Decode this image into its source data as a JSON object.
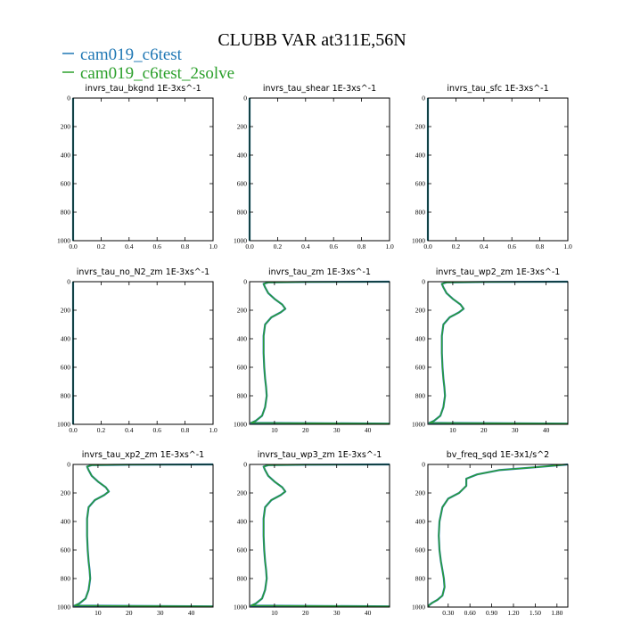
{
  "figure": {
    "title": "CLUBB VAR at311E,56N",
    "legend": [
      {
        "label": "cam019_c6test",
        "color": "#1f77b4"
      },
      {
        "label": "cam019_c6test_2solve",
        "color": "#2ca02c"
      }
    ]
  },
  "chart_data": [
    {
      "type": "line",
      "title": "invrs_tau_bkgnd   1E-3xs^-1",
      "xlim": [
        0,
        1.0
      ],
      "ylim": [
        1000,
        0
      ],
      "y_inverted": true,
      "xticks": [
        0.0,
        0.2,
        0.4,
        0.6,
        0.8,
        1.0
      ],
      "xtick_labels": [
        "0.0",
        "0.2",
        "0.4",
        "0.6",
        "0.8",
        "1.0"
      ],
      "yticks": [
        0,
        200,
        400,
        600,
        800,
        1000
      ],
      "series": [
        {
          "color": "#1f77b4",
          "x": [
            0,
            0
          ],
          "y": [
            0,
            1000
          ]
        },
        {
          "color": "#2ca02c",
          "x": [
            0,
            0
          ],
          "y": [
            0,
            1000
          ]
        }
      ]
    },
    {
      "type": "line",
      "title": "invrs_tau_shear   1E-3xs^-1",
      "xlim": [
        0,
        1.0
      ],
      "ylim": [
        1000,
        0
      ],
      "y_inverted": true,
      "xticks": [
        0.0,
        0.2,
        0.4,
        0.6,
        0.8,
        1.0
      ],
      "xtick_labels": [
        "0.0",
        "0.2",
        "0.4",
        "0.6",
        "0.8",
        "1.0"
      ],
      "yticks": [
        0,
        200,
        400,
        600,
        800,
        1000
      ],
      "series": [
        {
          "color": "#1f77b4",
          "x": [
            0,
            0
          ],
          "y": [
            0,
            1000
          ]
        },
        {
          "color": "#2ca02c",
          "x": [
            0,
            0
          ],
          "y": [
            0,
            1000
          ]
        }
      ]
    },
    {
      "type": "line",
      "title": "invrs_tau_sfc   1E-3xs^-1",
      "xlim": [
        0,
        1.0
      ],
      "ylim": [
        1000,
        0
      ],
      "y_inverted": true,
      "xticks": [
        0.0,
        0.2,
        0.4,
        0.6,
        0.8,
        1.0
      ],
      "xtick_labels": [
        "0.0",
        "0.2",
        "0.4",
        "0.6",
        "0.8",
        "1.0"
      ],
      "yticks": [
        0,
        200,
        400,
        600,
        800,
        1000
      ],
      "series": [
        {
          "color": "#1f77b4",
          "x": [
            0,
            0
          ],
          "y": [
            0,
            1000
          ]
        },
        {
          "color": "#2ca02c",
          "x": [
            0,
            0
          ],
          "y": [
            0,
            1000
          ]
        }
      ]
    },
    {
      "type": "line",
      "title": "invrs_tau_no_N2_zm   1E-3xs^-1",
      "xlim": [
        0,
        1.0
      ],
      "ylim": [
        1000,
        0
      ],
      "y_inverted": true,
      "xticks": [
        0.0,
        0.2,
        0.4,
        0.6,
        0.8,
        1.0
      ],
      "xtick_labels": [
        "0.0",
        "0.2",
        "0.4",
        "0.6",
        "0.8",
        "1.0"
      ],
      "yticks": [
        0,
        200,
        400,
        600,
        800,
        1000
      ],
      "series": [
        {
          "color": "#1f77b4",
          "x": [
            0,
            0
          ],
          "y": [
            0,
            1000
          ]
        },
        {
          "color": "#2ca02c",
          "x": [
            0,
            0
          ],
          "y": [
            0,
            1000
          ]
        }
      ]
    },
    {
      "type": "line",
      "title": "invrs_tau_zm   1E-3xs^-1",
      "xlim": [
        2,
        47
      ],
      "ylim": [
        1000,
        0
      ],
      "y_inverted": true,
      "xticks": [
        10,
        20,
        30,
        40
      ],
      "xtick_labels": [
        "10",
        "20",
        "30",
        "40"
      ],
      "yticks": [
        0,
        200,
        400,
        600,
        800,
        1000
      ],
      "series": [
        {
          "color": "#1f77b4",
          "x": [
            47,
            20,
            8,
            6.5,
            7,
            8,
            10,
            12.5,
            13.5,
            12,
            9,
            7,
            6.5,
            6.5,
            6.7,
            7,
            7.3,
            7.5,
            7,
            6,
            4,
            3,
            2.5,
            47
          ],
          "y": [
            0,
            2,
            5,
            15,
            40,
            80,
            120,
            160,
            190,
            215,
            250,
            300,
            380,
            500,
            600,
            680,
            740,
            800,
            880,
            940,
            975,
            985,
            990,
            995
          ]
        },
        {
          "color": "#2ca02c",
          "x": [
            47,
            20,
            8,
            6.5,
            7,
            8,
            10,
            12.5,
            13.5,
            12,
            9,
            7,
            6.5,
            6.5,
            6.7,
            7,
            7.3,
            7.5,
            7,
            6,
            4,
            3,
            2.5,
            47
          ],
          "y": [
            0,
            2,
            5,
            15,
            40,
            80,
            120,
            160,
            190,
            215,
            250,
            300,
            380,
            500,
            600,
            680,
            740,
            800,
            880,
            940,
            975,
            985,
            990,
            995
          ]
        }
      ]
    },
    {
      "type": "line",
      "title": "invrs_tau_wp2_zm   1E-3xs^-1",
      "xlim": [
        2,
        47
      ],
      "ylim": [
        1000,
        0
      ],
      "y_inverted": true,
      "xticks": [
        10,
        20,
        30,
        40
      ],
      "xtick_labels": [
        "10",
        "20",
        "30",
        "40"
      ],
      "yticks": [
        0,
        200,
        400,
        600,
        800,
        1000
      ],
      "series": [
        {
          "color": "#1f77b4",
          "x": [
            47,
            20,
            8,
            6.5,
            7,
            8,
            10,
            12.5,
            13.5,
            12,
            9,
            7,
            6.5,
            6.5,
            6.7,
            7,
            7.3,
            7.5,
            7,
            6,
            4,
            3,
            2.5,
            47
          ],
          "y": [
            0,
            2,
            5,
            15,
            40,
            80,
            120,
            160,
            190,
            215,
            250,
            300,
            380,
            500,
            600,
            680,
            740,
            800,
            880,
            940,
            975,
            985,
            990,
            995
          ]
        },
        {
          "color": "#2ca02c",
          "x": [
            47,
            20,
            8,
            6.5,
            7,
            8,
            10,
            12.5,
            13.5,
            12,
            9,
            7,
            6.5,
            6.5,
            6.7,
            7,
            7.3,
            7.5,
            7,
            6,
            4,
            3,
            2.5,
            47
          ],
          "y": [
            0,
            2,
            5,
            15,
            40,
            80,
            120,
            160,
            190,
            215,
            250,
            300,
            380,
            500,
            600,
            680,
            740,
            800,
            880,
            940,
            975,
            985,
            990,
            995
          ]
        }
      ]
    },
    {
      "type": "line",
      "title": "invrs_tau_xp2_zm   1E-3xs^-1",
      "xlim": [
        2,
        47
      ],
      "ylim": [
        1000,
        0
      ],
      "y_inverted": true,
      "xticks": [
        10,
        20,
        30,
        40
      ],
      "xtick_labels": [
        "10",
        "20",
        "30",
        "40"
      ],
      "yticks": [
        0,
        200,
        400,
        600,
        800,
        1000
      ],
      "series": [
        {
          "color": "#1f77b4",
          "x": [
            47,
            20,
            8,
            6.5,
            7,
            8,
            10,
            12.5,
            13.5,
            12,
            9,
            7,
            6.5,
            6.5,
            6.7,
            7,
            7.3,
            7.5,
            7,
            6,
            4,
            3,
            2.5,
            47
          ],
          "y": [
            0,
            2,
            5,
            15,
            40,
            80,
            120,
            160,
            190,
            215,
            250,
            300,
            380,
            500,
            600,
            680,
            740,
            800,
            880,
            940,
            975,
            985,
            990,
            995
          ]
        },
        {
          "color": "#2ca02c",
          "x": [
            47,
            20,
            8,
            6.5,
            7,
            8,
            10,
            12.5,
            13.5,
            12,
            9,
            7,
            6.5,
            6.5,
            6.7,
            7,
            7.3,
            7.5,
            7,
            6,
            4,
            3,
            2.5,
            47
          ],
          "y": [
            0,
            2,
            5,
            15,
            40,
            80,
            120,
            160,
            190,
            215,
            250,
            300,
            380,
            500,
            600,
            680,
            740,
            800,
            880,
            940,
            975,
            985,
            990,
            995
          ]
        }
      ]
    },
    {
      "type": "line",
      "title": "invrs_tau_wp3_zm   1E-3xs^-1",
      "xlim": [
        2,
        47
      ],
      "ylim": [
        1000,
        0
      ],
      "y_inverted": true,
      "xticks": [
        10,
        20,
        30,
        40
      ],
      "xtick_labels": [
        "10",
        "20",
        "30",
        "40"
      ],
      "yticks": [
        0,
        200,
        400,
        600,
        800,
        1000
      ],
      "series": [
        {
          "color": "#1f77b4",
          "x": [
            47,
            20,
            8,
            6.5,
            7,
            8,
            10,
            12.5,
            13.5,
            12,
            9,
            7,
            6.5,
            6.5,
            6.7,
            7,
            7.3,
            7.5,
            7,
            6,
            4,
            3,
            2.5,
            47
          ],
          "y": [
            0,
            2,
            5,
            15,
            40,
            80,
            120,
            160,
            190,
            215,
            250,
            300,
            380,
            500,
            600,
            680,
            740,
            800,
            880,
            940,
            975,
            985,
            990,
            995
          ]
        },
        {
          "color": "#2ca02c",
          "x": [
            47,
            20,
            8,
            6.5,
            7,
            8,
            10,
            12.5,
            13.5,
            12,
            9,
            7,
            6.5,
            6.5,
            6.7,
            7,
            7.3,
            7.5,
            7,
            6,
            4,
            3,
            2.5,
            47
          ],
          "y": [
            0,
            2,
            5,
            15,
            40,
            80,
            120,
            160,
            190,
            215,
            250,
            300,
            380,
            500,
            600,
            680,
            740,
            800,
            880,
            940,
            975,
            985,
            990,
            995
          ]
        }
      ]
    },
    {
      "type": "line",
      "title": "bv_freq_sqd   1E-3x1/s^2",
      "xlim": [
        0.02,
        1.95
      ],
      "ylim": [
        1000,
        0
      ],
      "y_inverted": true,
      "xticks": [
        0.3,
        0.6,
        0.9,
        1.2,
        1.5,
        1.8
      ],
      "xtick_labels": [
        "0.30",
        "0.60",
        "0.90",
        "1.20",
        "1.50",
        "1.80"
      ],
      "yticks": [
        0,
        200,
        400,
        600,
        800,
        1000
      ],
      "series": [
        {
          "color": "#1f77b4",
          "x": [
            1.95,
            1.5,
            1.0,
            0.7,
            0.55,
            0.55,
            0.45,
            0.3,
            0.22,
            0.18,
            0.17,
            0.18,
            0.2,
            0.22,
            0.24,
            0.25,
            0.22,
            0.15,
            0.08,
            0.04,
            0.03
          ],
          "y": [
            0,
            20,
            40,
            70,
            100,
            150,
            200,
            240,
            300,
            400,
            500,
            600,
            680,
            740,
            800,
            860,
            920,
            950,
            970,
            985,
            995
          ]
        },
        {
          "color": "#2ca02c",
          "x": [
            1.95,
            1.5,
            1.0,
            0.7,
            0.55,
            0.55,
            0.45,
            0.3,
            0.22,
            0.18,
            0.17,
            0.18,
            0.2,
            0.22,
            0.24,
            0.25,
            0.22,
            0.15,
            0.08,
            0.04,
            0.03
          ],
          "y": [
            0,
            20,
            40,
            70,
            100,
            150,
            200,
            240,
            300,
            400,
            500,
            600,
            680,
            740,
            800,
            860,
            920,
            950,
            970,
            985,
            995
          ]
        }
      ]
    }
  ]
}
